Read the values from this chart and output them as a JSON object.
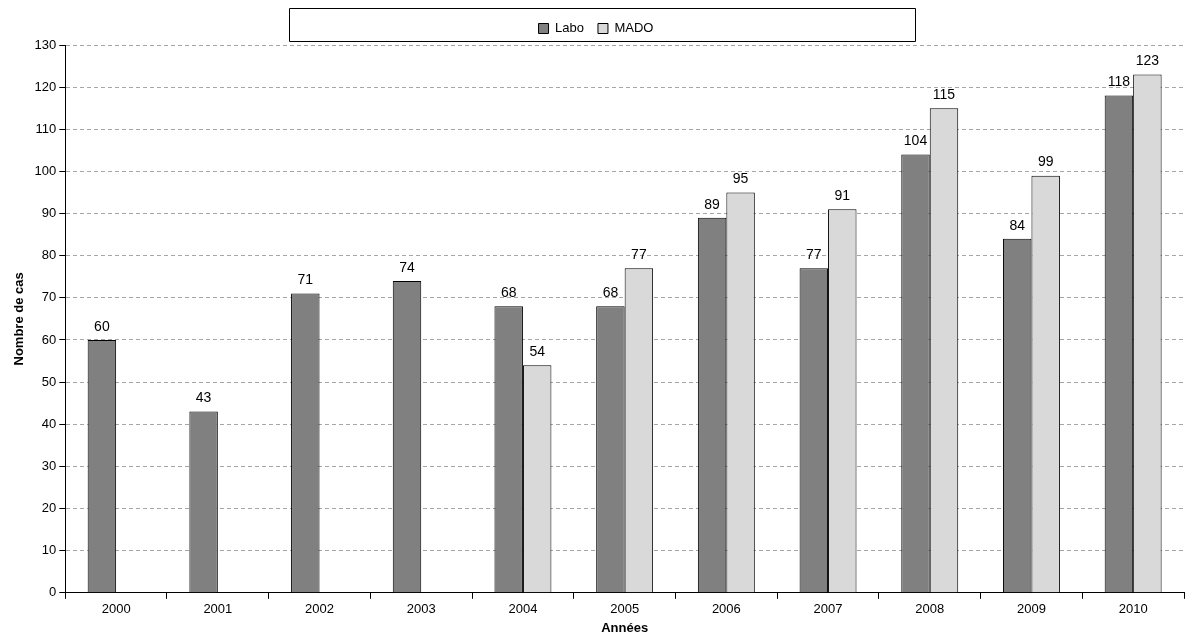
{
  "chart_data": {
    "type": "bar",
    "xlabel": "Années",
    "ylabel": "Nombre de cas",
    "categories": [
      "2000",
      "2001",
      "2002",
      "2003",
      "2004",
      "2005",
      "2006",
      "2007",
      "2008",
      "2009",
      "2010"
    ],
    "series": [
      {
        "name": "Labo",
        "color": "#808080",
        "values": [
          60,
          43,
          71,
          74,
          68,
          68,
          89,
          77,
          104,
          84,
          118
        ]
      },
      {
        "name": "MADO",
        "color": "#d9d9d9",
        "values": [
          null,
          null,
          null,
          null,
          54,
          77,
          95,
          91,
          115,
          99,
          123
        ]
      }
    ],
    "ylim": [
      0,
      130
    ],
    "yticks": [
      0,
      10,
      20,
      30,
      40,
      50,
      60,
      70,
      80,
      90,
      100,
      110,
      120,
      130
    ],
    "grid": "y",
    "legend": "top",
    "data_labels": true
  }
}
